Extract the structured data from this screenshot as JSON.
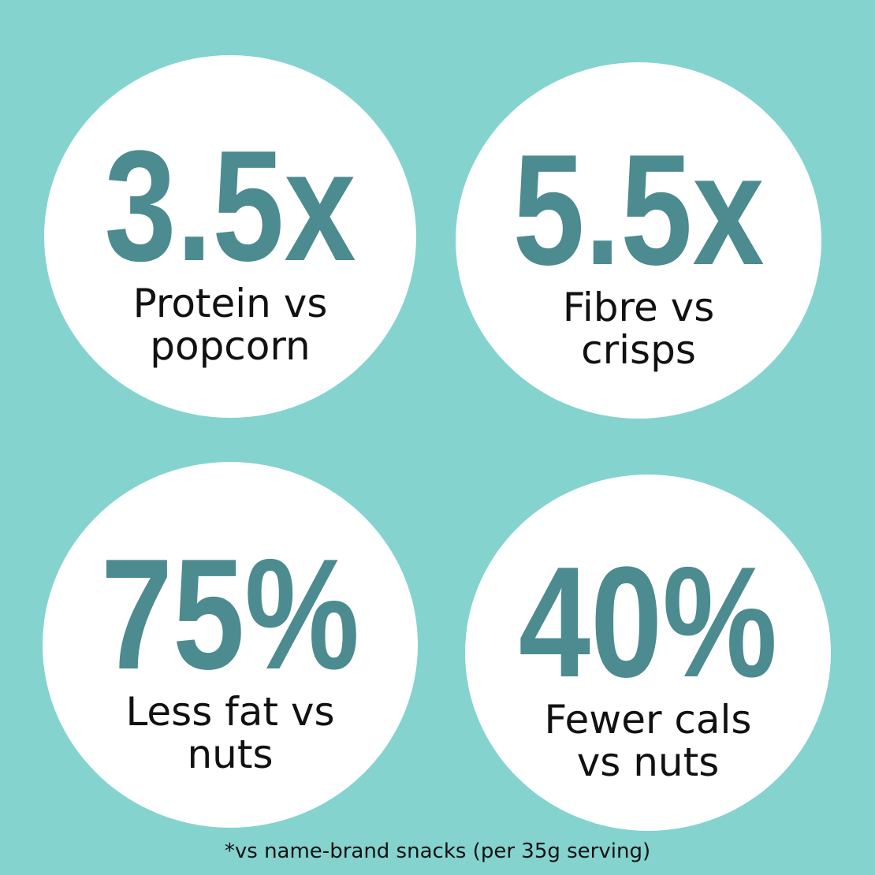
{
  "stats": [
    {
      "figure": "3.5x",
      "caption": [
        "Protein vs",
        "popcorn"
      ]
    },
    {
      "figure": "5.5x",
      "caption": [
        "Fibre vs",
        "crisps"
      ]
    },
    {
      "figure": "75%",
      "caption": [
        "Less fat vs",
        "nuts"
      ]
    },
    {
      "figure": "40%",
      "caption": [
        "Fewer cals",
        "vs nuts"
      ]
    }
  ],
  "footnote": "*vs name-brand snacks (per 35g serving)"
}
